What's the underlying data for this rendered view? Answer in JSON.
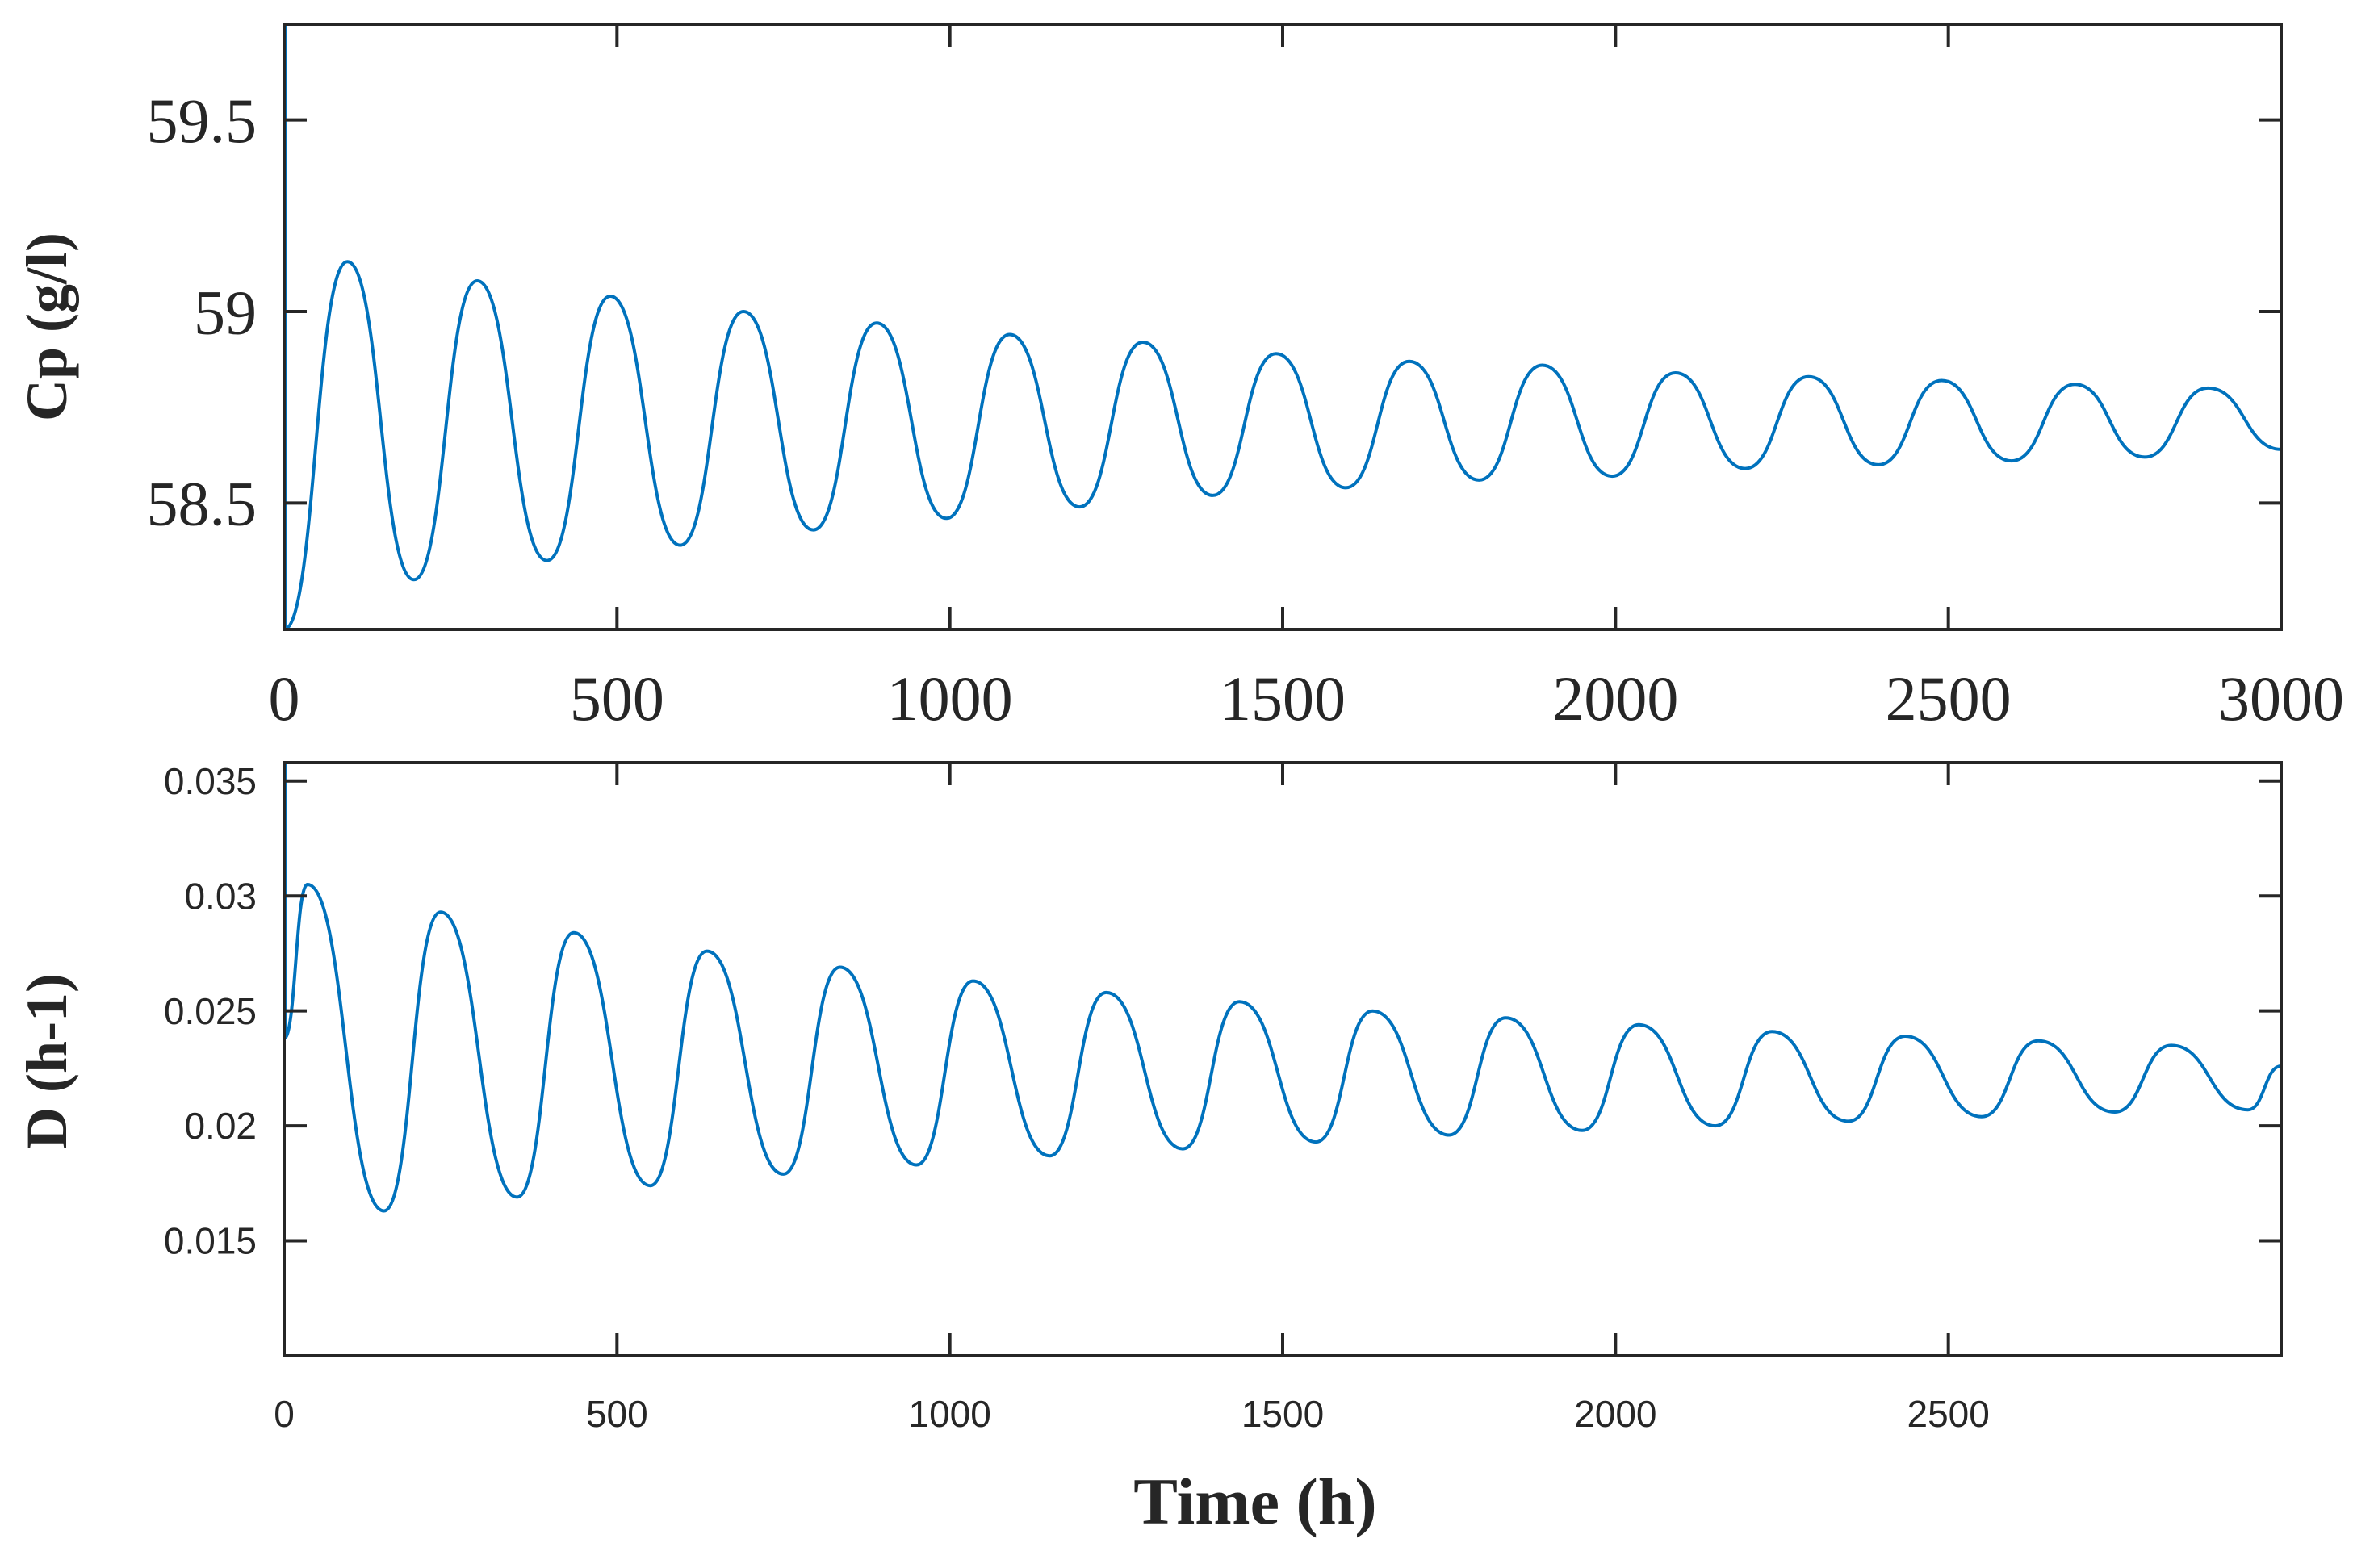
{
  "figure": {
    "xlabel": "Time (h)"
  },
  "chart_data": [
    {
      "type": "line",
      "title": "",
      "ylabel": "Cp (g/l)",
      "xlabel": "",
      "xlim": [
        0,
        3000
      ],
      "ylim": [
        58.17,
        59.75
      ],
      "xticks": [
        0,
        500,
        1000,
        1500,
        2000,
        2500,
        3000
      ],
      "xtick_labels": [
        "0",
        "500",
        "1000",
        "1500",
        "2000",
        "2500",
        "3000"
      ],
      "yticks": [
        58.5,
        59,
        59.5
      ],
      "ytick_labels": [
        "58.5",
        "59",
        "59.5"
      ],
      "grid": false,
      "series": [
        {
          "name": "Cp",
          "color": "#0072BD",
          "shape": "damped-oscillation",
          "start": 58.17,
          "period_h": 198,
          "extrema": [
            {
              "x": 0,
              "y": 58.17
            },
            {
              "x": 95,
              "y": 59.13
            },
            {
              "x": 195,
              "y": 58.3
            },
            {
              "x": 290,
              "y": 59.08
            },
            {
              "x": 395,
              "y": 58.35
            },
            {
              "x": 490,
              "y": 59.04
            },
            {
              "x": 595,
              "y": 58.39
            },
            {
              "x": 690,
              "y": 59.0
            },
            {
              "x": 795,
              "y": 58.43
            },
            {
              "x": 890,
              "y": 58.97
            },
            {
              "x": 995,
              "y": 58.46
            },
            {
              "x": 1090,
              "y": 58.94
            },
            {
              "x": 1195,
              "y": 58.49
            },
            {
              "x": 1290,
              "y": 58.92
            },
            {
              "x": 1395,
              "y": 58.52
            },
            {
              "x": 1490,
              "y": 58.89
            },
            {
              "x": 1595,
              "y": 58.54
            },
            {
              "x": 1690,
              "y": 58.87
            },
            {
              "x": 1795,
              "y": 58.56
            },
            {
              "x": 1890,
              "y": 58.86
            },
            {
              "x": 1995,
              "y": 58.57
            },
            {
              "x": 2090,
              "y": 58.84
            },
            {
              "x": 2195,
              "y": 58.59
            },
            {
              "x": 2290,
              "y": 58.83
            },
            {
              "x": 2395,
              "y": 58.6
            },
            {
              "x": 2490,
              "y": 58.82
            },
            {
              "x": 2595,
              "y": 58.61
            },
            {
              "x": 2690,
              "y": 58.81
            },
            {
              "x": 2795,
              "y": 58.62
            },
            {
              "x": 2890,
              "y": 58.8
            },
            {
              "x": 3000,
              "y": 58.64
            }
          ]
        }
      ]
    },
    {
      "type": "line",
      "title": "",
      "ylabel": "D (h-1)",
      "xlabel": "Time (h)",
      "xlim": [
        0,
        3000
      ],
      "ylim": [
        0.01,
        0.0358
      ],
      "xticks": [
        0,
        500,
        1000,
        1500,
        2000,
        2500
      ],
      "xtick_labels": [
        "0",
        "500",
        "1000",
        "1500",
        "2000",
        "2500"
      ],
      "yticks": [
        0.015,
        0.02,
        0.025,
        0.03,
        0.035
      ],
      "ytick_labels": [
        "0.015",
        "0.02",
        "0.025",
        "0.03",
        "0.035"
      ],
      "grid": false,
      "series": [
        {
          "name": "D",
          "color": "#0072BD",
          "shape": "damped-oscillation",
          "start": 0.0238,
          "period_h": 198,
          "extrema": [
            {
              "x": 0,
              "y": 0.0238
            },
            {
              "x": 35,
              "y": 0.0305
            },
            {
              "x": 150,
              "y": 0.0163
            },
            {
              "x": 235,
              "y": 0.0293
            },
            {
              "x": 350,
              "y": 0.0169
            },
            {
              "x": 435,
              "y": 0.0284
            },
            {
              "x": 550,
              "y": 0.0174
            },
            {
              "x": 635,
              "y": 0.0276
            },
            {
              "x": 750,
              "y": 0.0179
            },
            {
              "x": 835,
              "y": 0.0269
            },
            {
              "x": 950,
              "y": 0.0183
            },
            {
              "x": 1035,
              "y": 0.0263
            },
            {
              "x": 1150,
              "y": 0.0187
            },
            {
              "x": 1235,
              "y": 0.0258
            },
            {
              "x": 1350,
              "y": 0.019
            },
            {
              "x": 1435,
              "y": 0.0254
            },
            {
              "x": 1550,
              "y": 0.0193
            },
            {
              "x": 1635,
              "y": 0.025
            },
            {
              "x": 1750,
              "y": 0.0196
            },
            {
              "x": 1835,
              "y": 0.0247
            },
            {
              "x": 1950,
              "y": 0.0198
            },
            {
              "x": 2035,
              "y": 0.0244
            },
            {
              "x": 2150,
              "y": 0.02
            },
            {
              "x": 2235,
              "y": 0.0241
            },
            {
              "x": 2350,
              "y": 0.0202
            },
            {
              "x": 2435,
              "y": 0.0239
            },
            {
              "x": 2550,
              "y": 0.0204
            },
            {
              "x": 2635,
              "y": 0.0237
            },
            {
              "x": 2750,
              "y": 0.0206
            },
            {
              "x": 2835,
              "y": 0.0235
            },
            {
              "x": 2950,
              "y": 0.0207
            },
            {
              "x": 3000,
              "y": 0.0226
            }
          ]
        }
      ]
    }
  ]
}
